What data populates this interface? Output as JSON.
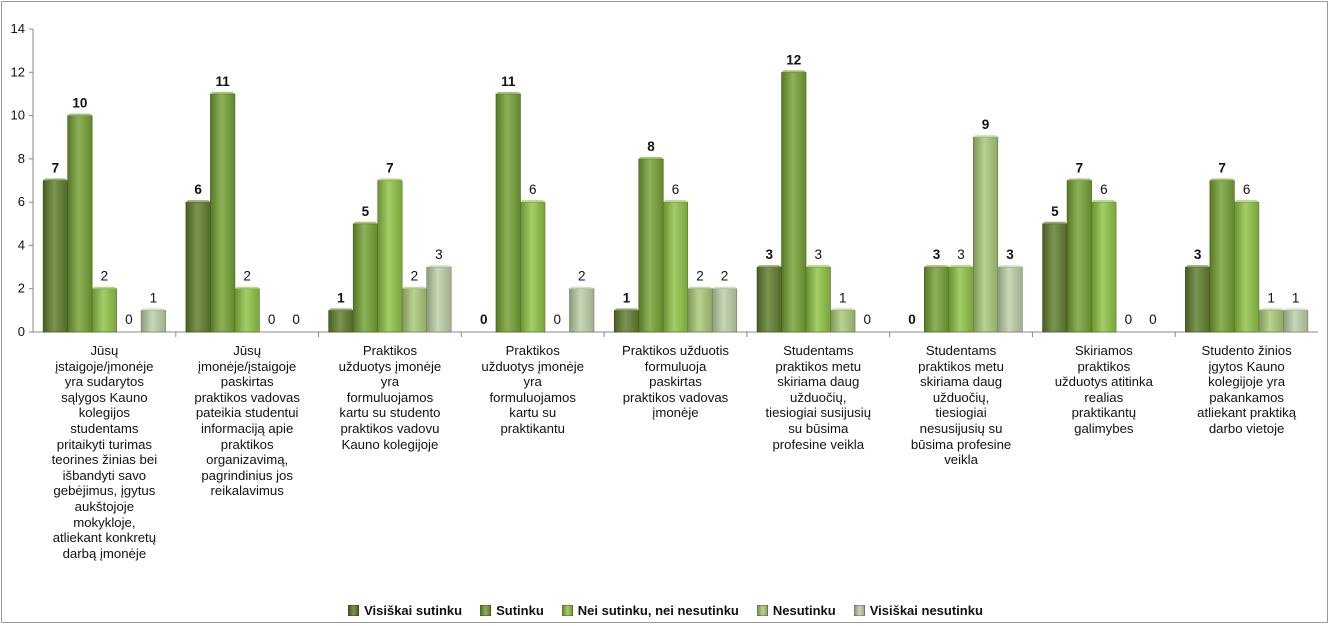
{
  "chart_data": {
    "type": "bar",
    "ylim": [
      0,
      14
    ],
    "yticks": [
      "0",
      "2",
      "4",
      "6",
      "8",
      "10",
      "12",
      "14"
    ],
    "categories": [
      "Jūsų įstaigoje/įmonėje yra sudarytos sąlygos Kauno kolegijos studentams pritaikyti turimas teorines žinias bei išbandyti savo gebėjimus, įgytus aukštojoje mokykloje, atliekant konkretų darbą įmonėje",
      "Jūsų įmonėje/įstaigoje paskirtas praktikos vadovas pateikia studentui informaciją apie praktikos organizavimą, pagrindinius jos reikalavimus",
      "Praktikos užduotys įmonėje yra formuluojamos kartu su studento praktikos vadovu Kauno kolegijoje",
      "Praktikos užduotys įmonėje yra formuluojamos kartu su praktikantu",
      "Praktikos užduotis formuluoja paskirtas praktikos vadovas įmonėje",
      "Studentams praktikos metu skiriama daug užduočių, tiesiogiai susijusių su būsima profesine veikla",
      "Studentams praktikos metu skiriama daug užduočių, tiesiogiai nesusijusių su būsima profesine veikla",
      "Skiriamos praktikos užduotys atitinka realias praktikantų galimybes",
      "Studento žinios įgytos Kauno kolegijoje yra pakankamos atliekant praktiką darbo vietoje"
    ],
    "category_lines": [
      [
        "Jūsų",
        "įstaigoje/įmonėje",
        "yra sudarytos",
        "sąlygos Kauno",
        "kolegijos",
        "studentams",
        "pritaikyti turimas",
        "teorines žinias bei",
        "išbandyti savo",
        "gebėjimus, įgytus",
        "aukštojoje",
        "mokykloje,",
        "atliekant konkretų",
        "darbą įmonėje"
      ],
      [
        "Jūsų",
        "įmonėje/įstaigoje",
        "paskirtas",
        "praktikos vadovas",
        "pateikia studentui",
        "informaciją apie",
        "praktikos",
        "organizavimą,",
        "pagrindinius jos",
        "reikalavimus"
      ],
      [
        "Praktikos",
        "užduotys įmonėje",
        "yra",
        "formuluojamos",
        "kartu su studento",
        "praktikos vadovu",
        "Kauno kolegijoje"
      ],
      [
        "Praktikos",
        "užduotys įmonėje",
        "yra",
        "formuluojamos",
        "kartu su",
        "praktikantu"
      ],
      [
        "Praktikos užduotis",
        "formuluoja",
        "paskirtas",
        "praktikos vadovas",
        "įmonėje"
      ],
      [
        "Studentams",
        "praktikos metu",
        "skiriama daug",
        "užduočių,",
        "tiesiogiai susijusių",
        "su būsima",
        "profesine veikla"
      ],
      [
        "Studentams",
        "praktikos metu",
        "skiriama daug",
        "užduočių,",
        "tiesiogiai",
        "nesusijusių su",
        "būsima profesine",
        "veikla"
      ],
      [
        "Skiriamos",
        "praktikos",
        "užduotys atitinka",
        "realias",
        "praktikantų",
        "galimybes"
      ],
      [
        "Studento žinios",
        "įgytos Kauno",
        "kolegijoje yra",
        "pakankamos",
        "atliekant praktiką",
        "darbo vietoje"
      ]
    ],
    "series": [
      {
        "name": "Visiškai sutinku",
        "color": "#5f7d2c",
        "label_bold": true,
        "values": [
          7,
          6,
          1,
          0,
          1,
          3,
          0,
          5,
          3
        ]
      },
      {
        "name": "Sutinku",
        "color": "#74a032",
        "label_bold": true,
        "values": [
          10,
          11,
          5,
          11,
          8,
          12,
          3,
          7,
          7
        ]
      },
      {
        "name": "Nei sutinku, nei nesutinku",
        "color": "#8fc245",
        "label_bold": false,
        "values": [
          2,
          2,
          7,
          6,
          6,
          3,
          3,
          6,
          6
        ]
      },
      {
        "name": "Nesutinku",
        "color": "#a8c878",
        "label_bold": false,
        "values": [
          0,
          0,
          2,
          0,
          2,
          1,
          9,
          0,
          1
        ]
      },
      {
        "name": "Visiškai nesutinku",
        "color": "#bccfa6",
        "label_bold": false,
        "values": [
          1,
          0,
          3,
          2,
          2,
          0,
          3,
          0,
          1
        ]
      }
    ],
    "bold_overrides": [
      {
        "series": 2,
        "category": 2,
        "bold": true
      },
      {
        "series": 3,
        "category": 6,
        "bold": true
      },
      {
        "series": 4,
        "category": 6,
        "bold": true
      }
    ],
    "legend_position": "bottom",
    "grid": false
  }
}
